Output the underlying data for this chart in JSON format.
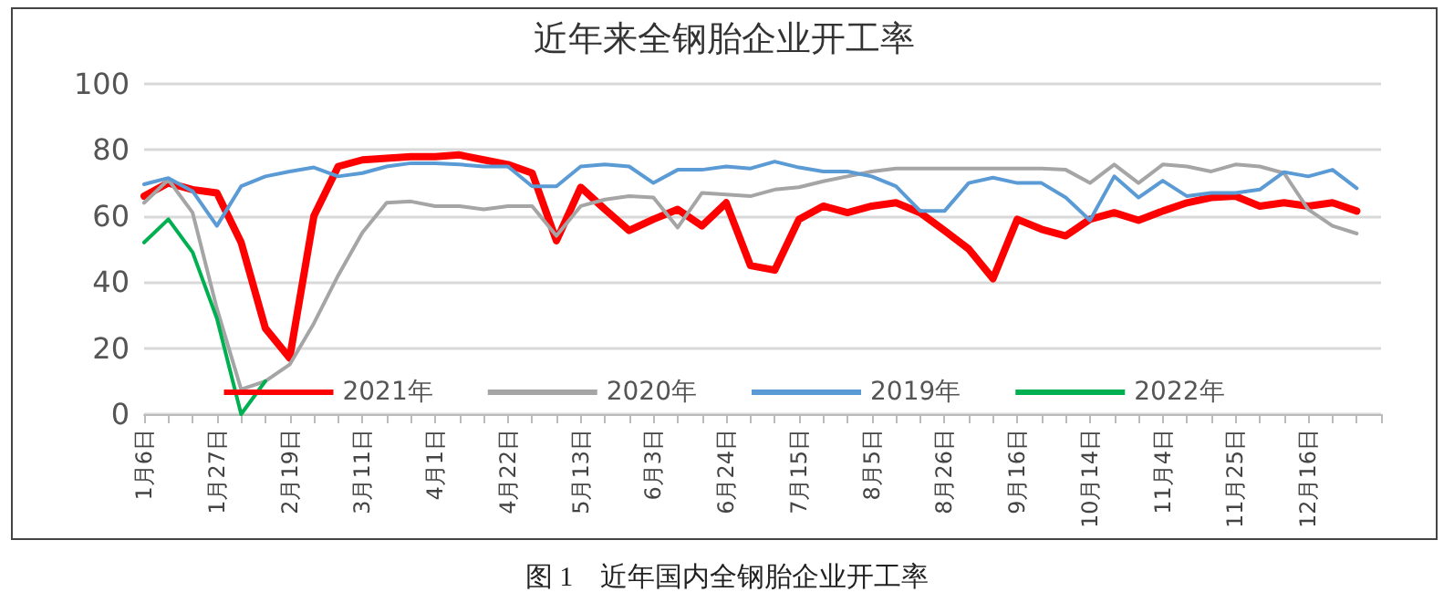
{
  "chart_data": {
    "type": "line",
    "title": "近年来全钢胎企业开工率",
    "annotations": [
      "图 1　近年国内全钢胎企业开工率"
    ],
    "categories": [
      "1月6日",
      null,
      null,
      "1月27日",
      null,
      null,
      "2月19日",
      null,
      null,
      "3月11日",
      null,
      null,
      "4月1日",
      null,
      null,
      "4月22日",
      null,
      null,
      "5月13日",
      null,
      null,
      "6月3日",
      null,
      null,
      "6月24日",
      null,
      null,
      "7月15日",
      null,
      null,
      "8月5日",
      null,
      null,
      "8月26日",
      null,
      null,
      "9月16日",
      null,
      null,
      "10月14日",
      null,
      null,
      "11月4日",
      null,
      null,
      "11月25日",
      null,
      null,
      "12月16日",
      null,
      null,
      null
    ],
    "series": [
      {
        "name": "2021年",
        "color": "#ff0000",
        "values": [
          66,
          70,
          68,
          67,
          52,
          26,
          17,
          60,
          75,
          77,
          77.5,
          78,
          78,
          78.5,
          77,
          75.6,
          73,
          52.5,
          68.7,
          62,
          55.6,
          59,
          62,
          57,
          64,
          45,
          43.6,
          59,
          63,
          61,
          63,
          64,
          61,
          55.6,
          50,
          41,
          59,
          56,
          54,
          59,
          61,
          58.7,
          61.5,
          64,
          65.6,
          66,
          63,
          64,
          63,
          64,
          61.5,
          null
        ]
      },
      {
        "name": "2020年",
        "color": "#a5a5a5",
        "values": [
          64,
          71,
          61,
          32,
          7.5,
          10,
          15,
          27.5,
          42,
          55,
          64,
          64.4,
          63,
          63,
          62,
          63,
          63,
          54,
          63,
          65,
          66,
          65.6,
          56.5,
          67,
          66.5,
          66,
          68,
          68.7,
          70.5,
          72,
          73.5,
          74.4,
          74.4,
          74.4,
          74.4,
          74.4,
          74.4,
          74.4,
          74,
          70,
          75.6,
          70,
          75.6,
          75,
          73.5,
          75.6,
          75,
          73,
          62,
          57,
          54.7,
          null
        ]
      },
      {
        "name": "2019年",
        "color": "#5b9bd5",
        "values": [
          69.6,
          71.5,
          67.5,
          57,
          69,
          72,
          73.5,
          74.7,
          72,
          73,
          75,
          76,
          76,
          75.6,
          75,
          75,
          69,
          69,
          75,
          75.6,
          75,
          70,
          74,
          74,
          75,
          74.4,
          76.5,
          74.7,
          73.5,
          73.5,
          72,
          69,
          61.5,
          61.5,
          70,
          71.6,
          70,
          70,
          65.6,
          58.7,
          72,
          65.6,
          70.7,
          66,
          67,
          67,
          68,
          73.3,
          72,
          74,
          68.4,
          null
        ]
      },
      {
        "name": "2022年",
        "color": "#00b050",
        "values": [
          52,
          59,
          49,
          29,
          0,
          10,
          null,
          null,
          null,
          null,
          null,
          null,
          null,
          null,
          null,
          null,
          null,
          null,
          null,
          null,
          null,
          null,
          null,
          null,
          null,
          null,
          null,
          null,
          null,
          null,
          null,
          null,
          null,
          null,
          null,
          null,
          null,
          null,
          null,
          null,
          null,
          null,
          null,
          null,
          null,
          null,
          null,
          null,
          null,
          null,
          null,
          null
        ]
      }
    ],
    "ylim": [
      0,
      100
    ],
    "yticks": [
      0,
      20,
      40,
      60,
      80,
      100
    ],
    "grid": "y",
    "legend": "bottom",
    "marker": "none",
    "line_style": "solid"
  }
}
